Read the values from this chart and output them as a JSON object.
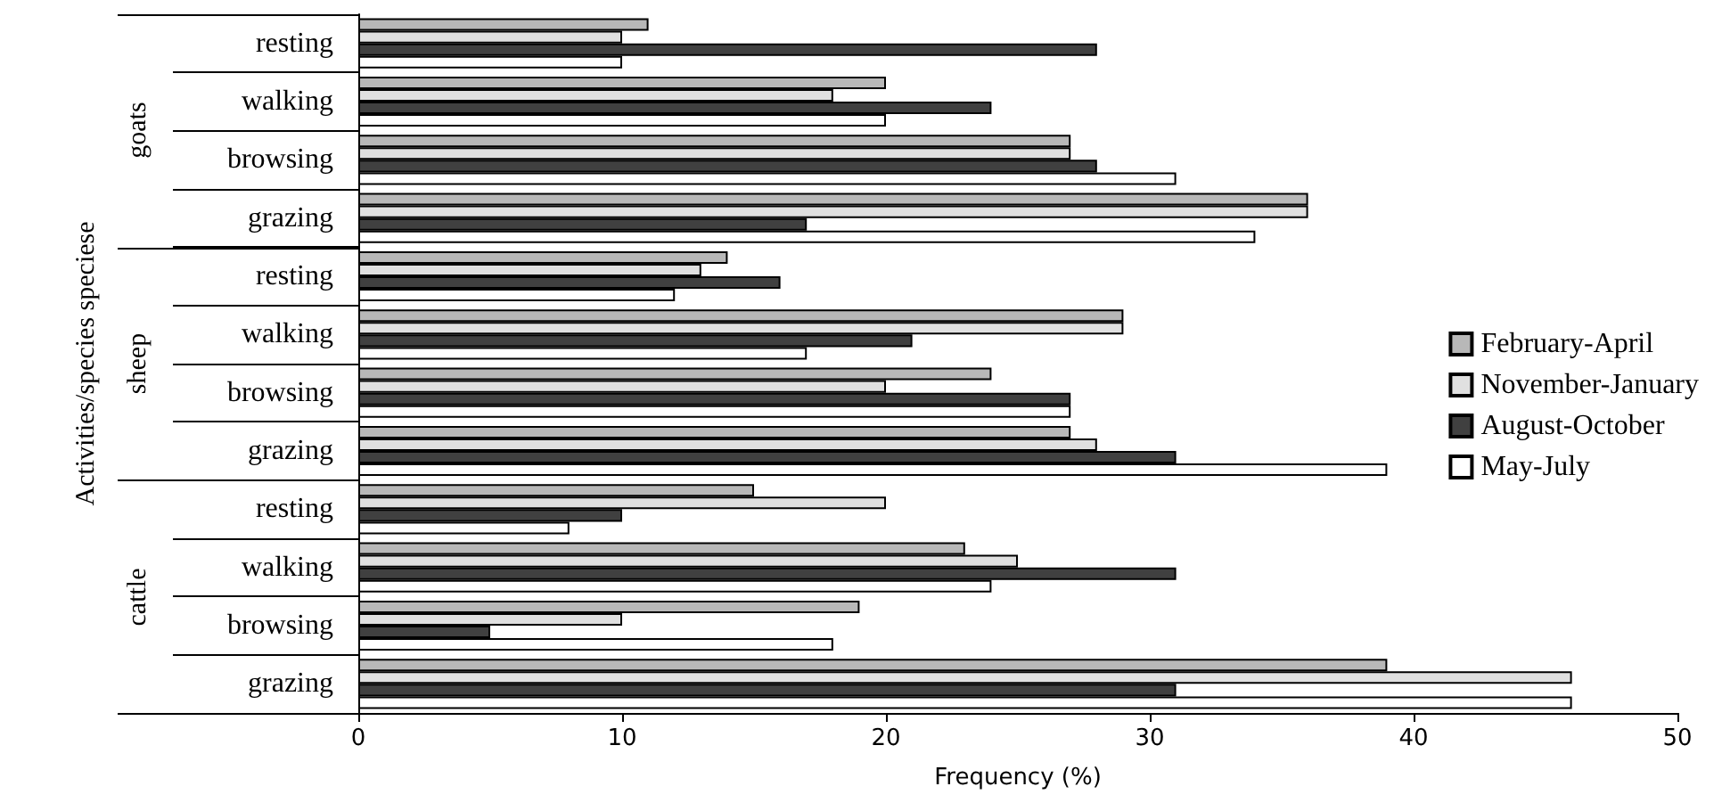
{
  "chart_data": {
    "type": "bar",
    "orientation": "horizontal",
    "xlabel": "Frequency (%)",
    "ylabel": "Activities/species speciese",
    "categories": [
      "resting",
      "walking",
      "browsing",
      "grazing",
      "resting",
      "walking",
      "browsing",
      "grazing",
      "resting",
      "walking",
      "browsing",
      "grazing"
    ],
    "annotations": [
      "goats",
      "sheep",
      "cattle"
    ],
    "series": [
      {
        "name": "February-April",
        "color": "#b8b8b8",
        "values": [
          11,
          20,
          27,
          36,
          14,
          29,
          24,
          27,
          15,
          23,
          19,
          39
        ]
      },
      {
        "name": "November-January",
        "color": "#e0e0e0",
        "values": [
          10,
          18,
          27,
          36,
          13,
          29,
          20,
          28,
          20,
          25,
          10,
          46
        ]
      },
      {
        "name": "August-October",
        "color": "#404040",
        "values": [
          28,
          24,
          28,
          17,
          16,
          21,
          27,
          31,
          10,
          31,
          5,
          31
        ]
      },
      {
        "name": "May-July",
        "color": "#ffffff",
        "values": [
          10,
          20,
          31,
          34,
          12,
          17,
          27,
          39,
          8,
          24,
          18,
          46
        ]
      }
    ],
    "xlim": [
      0,
      50
    ],
    "xticks": [
      0,
      10,
      20,
      30,
      40,
      50
    ],
    "grid": false,
    "legend": "right"
  }
}
